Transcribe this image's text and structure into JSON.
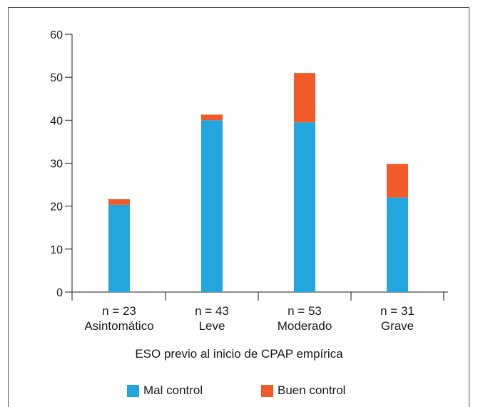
{
  "chart_data": {
    "type": "bar",
    "stacked": true,
    "title": "",
    "xlabel": "ESO previo al inicio de CPAP empírica",
    "ylabel": "",
    "ylim": [
      0,
      60
    ],
    "yticks": [
      0,
      10,
      20,
      30,
      40,
      50,
      60
    ],
    "grid": false,
    "legend_position": "bottom",
    "categories": [
      {
        "n": "n = 23",
        "name": "Asintomático"
      },
      {
        "n": "n = 43",
        "name": "Leve"
      },
      {
        "n": "n = 53",
        "name": "Moderado"
      },
      {
        "n": "n = 31",
        "name": "Grave"
      }
    ],
    "series": [
      {
        "name": "Mal control",
        "color": "#22a6dd",
        "values": [
          20.3,
          40.0,
          39.5,
          22.0
        ]
      },
      {
        "name": "Buen control",
        "color": "#f15a29",
        "values": [
          1.3,
          1.3,
          11.5,
          7.8
        ]
      }
    ]
  }
}
